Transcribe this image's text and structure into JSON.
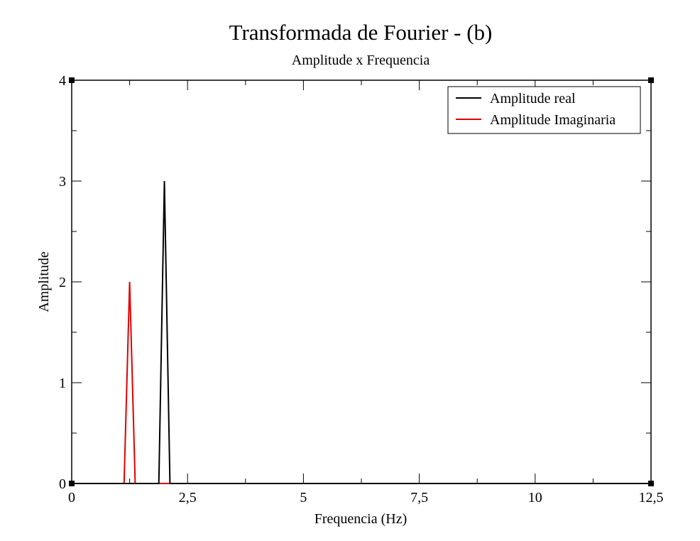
{
  "chart_data": {
    "type": "line",
    "title": "Transformada de Fourier - (b)",
    "subtitle": "Amplitude x Frequencia",
    "xlabel": "Frequencia (Hz)",
    "ylabel": "Amplitude",
    "xlim": [
      0,
      12.5
    ],
    "ylim": [
      0,
      4
    ],
    "xticks": [
      0,
      2.5,
      5,
      7.5,
      10,
      12.5
    ],
    "xtick_labels": [
      "0",
      "2,5",
      "5",
      "7,5",
      "10",
      "12,5"
    ],
    "yticks": [
      0,
      1,
      2,
      3,
      4
    ],
    "ytick_labels": [
      "0",
      "1",
      "2",
      "3",
      "4"
    ],
    "grid": false,
    "legend_position": "top-right",
    "series": [
      {
        "name": "Amplitude real",
        "color": "#000000",
        "x": [
          0,
          1.88,
          2.0,
          2.12,
          12.5
        ],
        "y": [
          0,
          0,
          3,
          0,
          0
        ]
      },
      {
        "name": "Amplitude Imaginaria",
        "color": "#e00000",
        "x": [
          0,
          1.13,
          1.25,
          1.37,
          12.5
        ],
        "y": [
          0,
          0,
          2,
          0,
          0
        ]
      }
    ]
  }
}
